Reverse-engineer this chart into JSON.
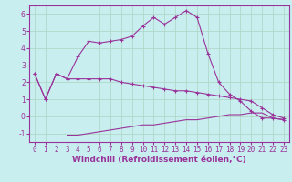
{
  "background_color": "#c8eef0",
  "grid_color": "#b0d8c8",
  "line_color": "#993399",
  "marker": "+",
  "xlabel": "Windchill (Refroidissement éolien,°C)",
  "xlabel_fontsize": 6.5,
  "tick_fontsize": 5.5,
  "xlim": [
    -0.5,
    23.5
  ],
  "ylim": [
    -1.5,
    6.5
  ],
  "yticks": [
    -1,
    0,
    1,
    2,
    3,
    4,
    5,
    6
  ],
  "xticks": [
    0,
    1,
    2,
    3,
    4,
    5,
    6,
    7,
    8,
    9,
    10,
    11,
    12,
    13,
    14,
    15,
    16,
    17,
    18,
    19,
    20,
    21,
    22,
    23
  ],
  "line1_x": [
    0,
    1,
    2,
    3,
    4,
    5,
    6,
    7,
    8,
    9,
    10,
    11,
    12,
    13,
    14,
    15,
    16,
    17,
    18,
    19,
    20,
    21,
    22,
    23
  ],
  "line1_y": [
    2.5,
    1.0,
    2.5,
    2.2,
    2.2,
    2.2,
    2.2,
    2.2,
    2.0,
    1.9,
    1.8,
    1.7,
    1.6,
    1.5,
    1.5,
    1.4,
    1.3,
    1.2,
    1.1,
    1.0,
    0.9,
    0.5,
    0.1,
    -0.1
  ],
  "line2_x": [
    0,
    1,
    2,
    3,
    4,
    5,
    6,
    7,
    8,
    9,
    10,
    11,
    12,
    13,
    14,
    15,
    16,
    17,
    18,
    19,
    20,
    21,
    22,
    23
  ],
  "line2_y": [
    2.5,
    1.0,
    2.5,
    2.2,
    3.5,
    4.4,
    4.3,
    4.4,
    4.5,
    4.7,
    5.3,
    5.8,
    5.4,
    5.8,
    6.2,
    5.8,
    3.7,
    2.0,
    1.3,
    0.9,
    0.3,
    -0.1,
    -0.1,
    -0.2
  ],
  "line3_x": [
    3,
    4,
    5,
    6,
    7,
    8,
    9,
    10,
    11,
    12,
    13,
    14,
    15,
    16,
    17,
    18,
    19,
    20,
    21,
    22,
    23
  ],
  "line3_y": [
    -1.1,
    -1.1,
    -1.0,
    -0.9,
    -0.8,
    -0.7,
    -0.6,
    -0.5,
    -0.5,
    -0.4,
    -0.3,
    -0.2,
    -0.2,
    -0.1,
    0.0,
    0.1,
    0.1,
    0.2,
    0.2,
    -0.1,
    -0.2
  ]
}
